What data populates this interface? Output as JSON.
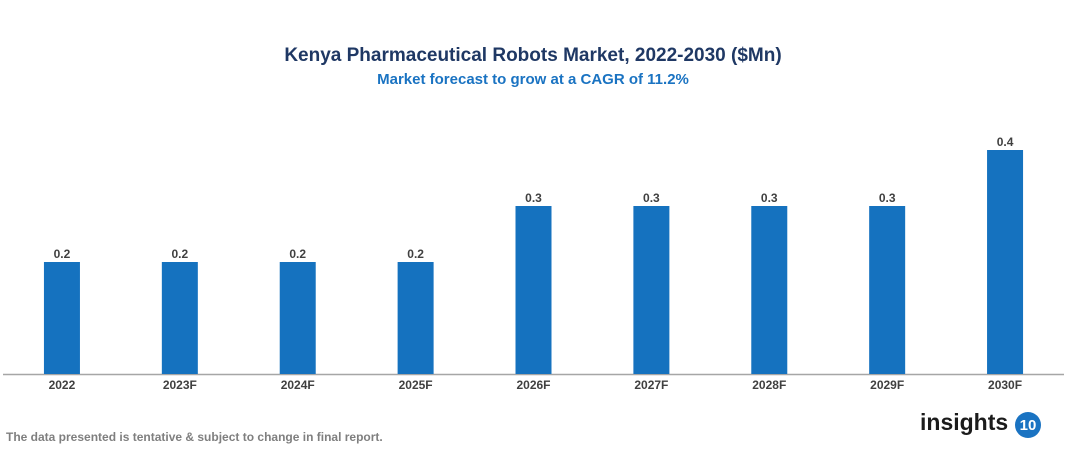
{
  "chart_data": {
    "type": "bar",
    "title": "Kenya Pharmaceutical Robots Market, 2022-2030 ($Mn)",
    "subtitle": "Market forecast to grow at a CAGR of 11.2%",
    "categories": [
      "2022",
      "2023F",
      "2024F",
      "2025F",
      "2026F",
      "2027F",
      "2028F",
      "2029F",
      "2030F"
    ],
    "values": [
      0.2,
      0.2,
      0.2,
      0.2,
      0.3,
      0.3,
      0.3,
      0.3,
      0.4
    ],
    "color": "#1572bf",
    "ylim": [
      0,
      0.4
    ]
  },
  "footnote": "The data presented is tentative & subject to change in final report.",
  "logo": {
    "text": "insights",
    "badge": "10"
  }
}
